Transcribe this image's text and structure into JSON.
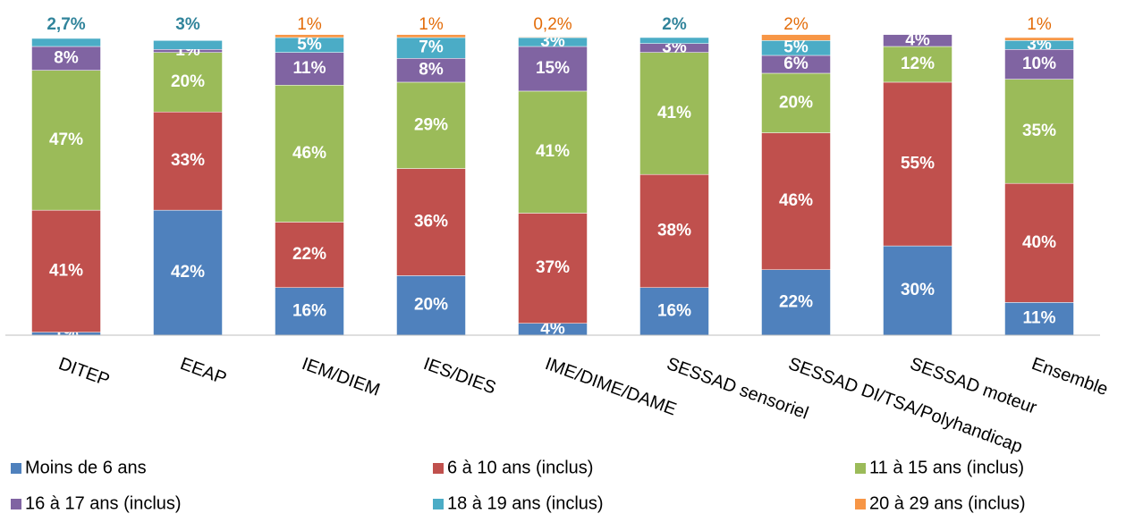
{
  "chart_data": {
    "type": "stacked_bar",
    "categories": [
      "DITEP",
      "EEAP",
      "IEM/DIEM",
      "IES/DIES",
      "IME/DIME/DAME",
      "SESSAD sensoriel",
      "SESSAD DI/TSA/Polyhandicap",
      "SESSAD moteur",
      "Ensemble"
    ],
    "ylim": [
      0,
      100
    ],
    "series": [
      {
        "name": "Moins de 6 ans",
        "color": "#4f81bd",
        "values": [
          1,
          42,
          16,
          20,
          4,
          16,
          22,
          30,
          11
        ],
        "value_labels": [
          "1%",
          "42%",
          "16%",
          "20%",
          "4%",
          "16%",
          "22%",
          "30%",
          "11%"
        ]
      },
      {
        "name": "6 à 10 ans (inclus)",
        "color": "#c0504d",
        "values": [
          41,
          33,
          22,
          36,
          37,
          38,
          46,
          55,
          40
        ],
        "value_labels": [
          "41%",
          "33%",
          "22%",
          "36%",
          "37%",
          "38%",
          "46%",
          "55%",
          "40%"
        ]
      },
      {
        "name": "11 à 15 ans (inclus)",
        "color": "#9bbb59",
        "values": [
          47,
          20,
          46,
          29,
          41,
          41,
          20,
          12,
          35
        ],
        "value_labels": [
          "47%",
          "20%",
          "46%",
          "29%",
          "41%",
          "41%",
          "20%",
          "12%",
          "35%"
        ]
      },
      {
        "name": "16 à 17 ans (inclus)",
        "color": "#8064a2",
        "values": [
          8,
          1,
          11,
          8,
          15,
          3,
          6,
          4,
          10
        ],
        "value_labels": [
          "8%",
          "1%",
          "11%",
          "8%",
          "15%",
          "3%",
          "6%",
          "4%",
          "10%"
        ]
      },
      {
        "name": "18 à 19 ans (inclus)",
        "color": "#4bacc6",
        "values": [
          2.7,
          3,
          5,
          7,
          3,
          2,
          5,
          null,
          3
        ],
        "value_labels": [
          "2,7%",
          "3%",
          "5%",
          "7%",
          "3%",
          "2%",
          "5%",
          null,
          "3%"
        ]
      },
      {
        "name": "20 à 29 ans (inclus)",
        "color": "#f79646",
        "values": [
          null,
          null,
          1,
          1,
          0.2,
          null,
          2,
          null,
          1
        ],
        "value_labels": [
          null,
          null,
          "1%",
          "1%",
          "0,2%",
          null,
          "2%",
          null,
          "1%"
        ]
      }
    ]
  }
}
